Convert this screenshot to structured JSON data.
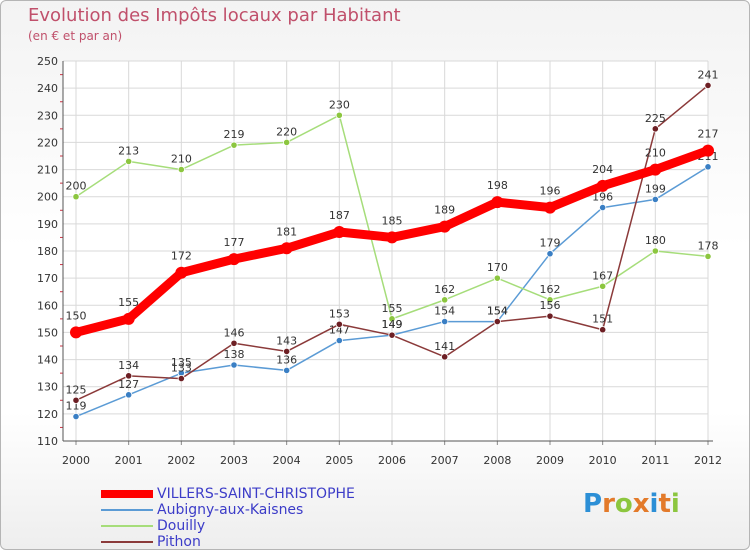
{
  "header": {
    "title": "Evolution des Impôts locaux par Habitant",
    "subtitle": "(en € et par an)"
  },
  "logo": {
    "text": "Proxiti",
    "letters": [
      {
        "ch": "P",
        "color": "#2c8fd6"
      },
      {
        "ch": "r",
        "color": "#e37a2a"
      },
      {
        "ch": "o",
        "color": "#8cc63f"
      },
      {
        "ch": "x",
        "color": "#e37a2a"
      },
      {
        "ch": "i",
        "color": "#2c8fd6"
      },
      {
        "ch": "t",
        "color": "#e37a2a"
      },
      {
        "ch": "i",
        "color": "#8cc63f"
      }
    ]
  },
  "chart_data": {
    "type": "line",
    "title": "Evolution des Impôts locaux par Habitant",
    "ylabel": "(en € et par an)",
    "xlabel": "",
    "ylim": [
      110,
      250
    ],
    "yticks": [
      110,
      120,
      130,
      140,
      150,
      160,
      170,
      180,
      190,
      200,
      210,
      220,
      230,
      240,
      250
    ],
    "categories": [
      "2000",
      "2001",
      "2002",
      "2003",
      "2004",
      "2005",
      "2006",
      "2007",
      "2008",
      "2009",
      "2010",
      "2011",
      "2012"
    ],
    "grid": true,
    "series": [
      {
        "name": "Aubigny-aux-Kaisnes",
        "color": "#5b9bd5",
        "marker": "#3a7fc4",
        "values": [
          119,
          127,
          135,
          138,
          136,
          147,
          149,
          154,
          154,
          179,
          196,
          199,
          211
        ]
      },
      {
        "name": "Douilly",
        "color": "#a6dd7a",
        "marker": "#8cc63f",
        "values": [
          200,
          213,
          210,
          219,
          220,
          230,
          155,
          162,
          170,
          162,
          167,
          180,
          178
        ]
      },
      {
        "name": "Pithon",
        "color": "#8b3a3a",
        "marker": "#6d1f24",
        "values": [
          125,
          134,
          133,
          146,
          143,
          153,
          149,
          141,
          154,
          156,
          151,
          225,
          241
        ]
      },
      {
        "name": "VILLERS-SAINT-CHRISTOPHE",
        "color": "#ff0000",
        "marker": "#ff0000",
        "values": [
          150,
          155,
          172,
          177,
          181,
          187,
          185,
          189,
          198,
          196,
          204,
          210,
          217
        ]
      }
    ],
    "legend": [
      "VILLERS-SAINT-CHRISTOPHE",
      "Aubigny-aux-Kaisnes",
      "Douilly",
      "Pithon"
    ]
  }
}
